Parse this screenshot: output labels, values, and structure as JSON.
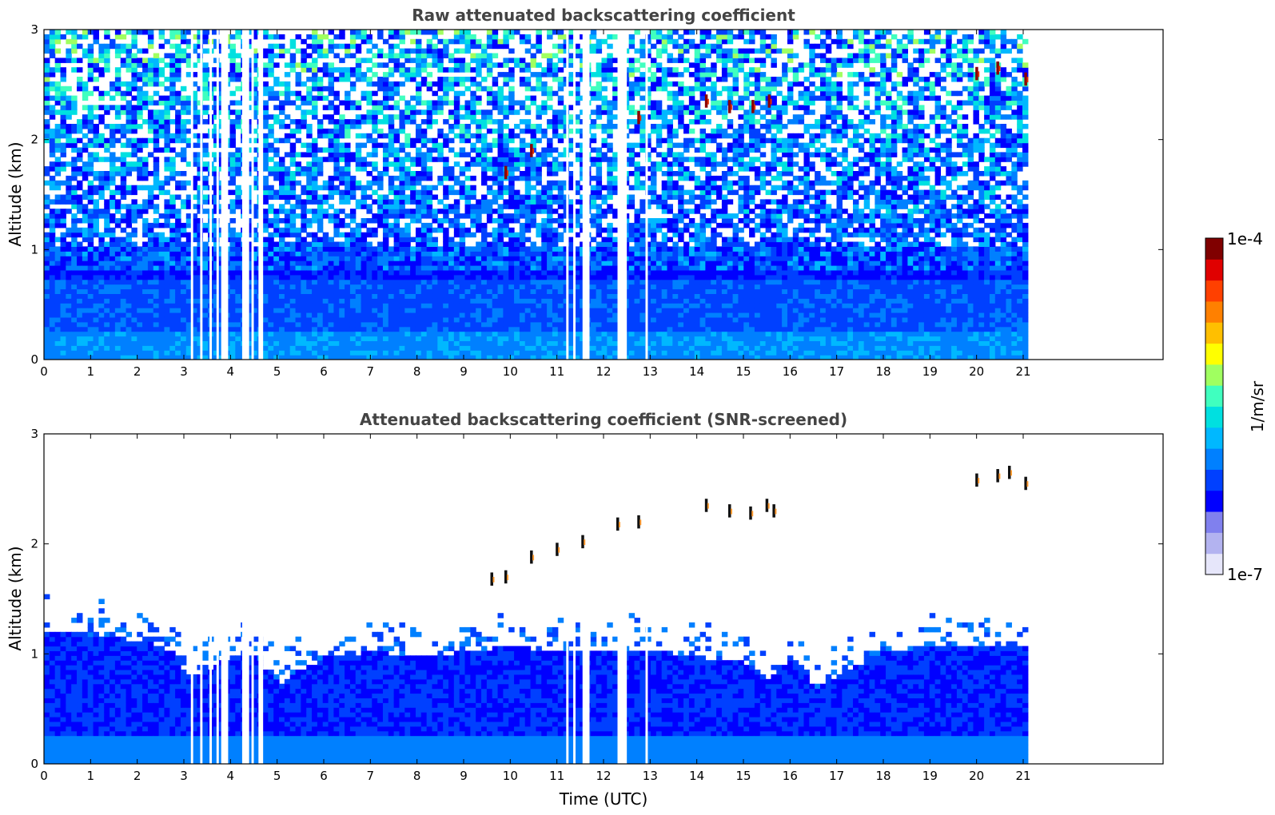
{
  "chart_data": [
    {
      "type": "heatmap",
      "title": "Raw attenuated backscattering coefficient",
      "xlabel": "",
      "ylabel": "Altitude (km)",
      "x_ticks": [
        "0",
        "1",
        "2",
        "3",
        "4",
        "5",
        "6",
        "7",
        "8",
        "9",
        "10",
        "11",
        "12",
        "13",
        "14",
        "15",
        "16",
        "17",
        "18",
        "19",
        "20",
        "21"
      ],
      "y_ticks": [
        "0",
        "1",
        "2",
        "3"
      ],
      "xlim": [
        0,
        24
      ],
      "ylim": [
        0,
        3
      ],
      "data_extent_x": [
        0,
        21.1
      ],
      "gaps_utc": [
        [
          3.15,
          3.2
        ],
        [
          3.35,
          3.4
        ],
        [
          3.55,
          3.6
        ],
        [
          3.7,
          3.75
        ],
        [
          3.8,
          3.95
        ],
        [
          4.25,
          4.4
        ],
        [
          4.45,
          4.5
        ],
        [
          4.6,
          4.7
        ],
        [
          11.2,
          11.25
        ],
        [
          11.35,
          11.4
        ],
        [
          11.55,
          11.7
        ],
        [
          12.3,
          12.5
        ],
        [
          12.9,
          12.95
        ]
      ],
      "cloud_features": [
        {
          "time": 9.9,
          "alt": 1.7
        },
        {
          "time": 10.45,
          "alt": 1.9
        },
        {
          "time": 12.75,
          "alt": 2.2
        },
        {
          "time": 14.2,
          "alt": 2.35
        },
        {
          "time": 14.7,
          "alt": 2.3
        },
        {
          "time": 15.2,
          "alt": 2.3
        },
        {
          "time": 15.55,
          "alt": 2.35
        },
        {
          "time": 20.0,
          "alt": 2.6
        },
        {
          "time": 20.45,
          "alt": 2.65
        },
        {
          "time": 21.05,
          "alt": 2.55
        }
      ],
      "grid": false
    },
    {
      "type": "heatmap",
      "title": "Attenuated backscattering coefficient (SNR-screened)",
      "xlabel": "Time (UTC)",
      "ylabel": "Altitude (km)",
      "x_ticks": [
        "0",
        "1",
        "2",
        "3",
        "4",
        "5",
        "6",
        "7",
        "8",
        "9",
        "10",
        "11",
        "12",
        "13",
        "14",
        "15",
        "16",
        "17",
        "18",
        "19",
        "20",
        "21"
      ],
      "y_ticks": [
        "0",
        "1",
        "2",
        "3"
      ],
      "xlim": [
        0,
        24
      ],
      "ylim": [
        0,
        3
      ],
      "data_extent_x": [
        0,
        21.1
      ],
      "boundary_layer_top_km": [
        [
          0.0,
          1.2
        ],
        [
          1.0,
          1.15
        ],
        [
          2.0,
          1.1
        ],
        [
          2.8,
          1.0
        ],
        [
          3.0,
          0.75
        ],
        [
          3.5,
          0.85
        ],
        [
          4.0,
          0.95
        ],
        [
          4.5,
          0.95
        ],
        [
          5.0,
          0.7
        ],
        [
          5.5,
          0.85
        ],
        [
          6.0,
          0.95
        ],
        [
          7.0,
          1.0
        ],
        [
          8.0,
          0.95
        ],
        [
          9.0,
          1.0
        ],
        [
          10.0,
          1.05
        ],
        [
          11.0,
          1.0
        ],
        [
          12.0,
          1.0
        ],
        [
          13.0,
          1.0
        ],
        [
          14.0,
          0.95
        ],
        [
          15.0,
          0.9
        ],
        [
          15.5,
          0.75
        ],
        [
          16.0,
          0.95
        ],
        [
          16.5,
          0.65
        ],
        [
          17.0,
          0.8
        ],
        [
          18.0,
          1.0
        ],
        [
          19.0,
          1.05
        ],
        [
          20.0,
          1.05
        ],
        [
          21.0,
          1.05
        ]
      ],
      "cloud_features": [
        {
          "time": 9.6,
          "alt": 1.68
        },
        {
          "time": 9.9,
          "alt": 1.7
        },
        {
          "time": 10.45,
          "alt": 1.88
        },
        {
          "time": 11.0,
          "alt": 1.95
        },
        {
          "time": 11.55,
          "alt": 2.02
        },
        {
          "time": 12.3,
          "alt": 2.18
        },
        {
          "time": 12.75,
          "alt": 2.2
        },
        {
          "time": 14.2,
          "alt": 2.35
        },
        {
          "time": 14.7,
          "alt": 2.3
        },
        {
          "time": 15.15,
          "alt": 2.28
        },
        {
          "time": 15.5,
          "alt": 2.35
        },
        {
          "time": 15.65,
          "alt": 2.3
        },
        {
          "time": 20.0,
          "alt": 2.58
        },
        {
          "time": 20.45,
          "alt": 2.62
        },
        {
          "time": 20.7,
          "alt": 2.65
        },
        {
          "time": 21.05,
          "alt": 2.55
        }
      ],
      "grid": false
    }
  ],
  "colorbar": {
    "label": "1/m/sr",
    "max_label": "1e-4",
    "min_label": "1e-7",
    "scale": "log",
    "colors": [
      "#e6e6fa",
      "#b3b3f0",
      "#8080ee",
      "#0000ff",
      "#0040ff",
      "#0080ff",
      "#00b8ff",
      "#00e0e0",
      "#40ffbf",
      "#a0ff60",
      "#ffff00",
      "#ffbf00",
      "#ff8000",
      "#ff4000",
      "#e00000",
      "#800000"
    ]
  }
}
